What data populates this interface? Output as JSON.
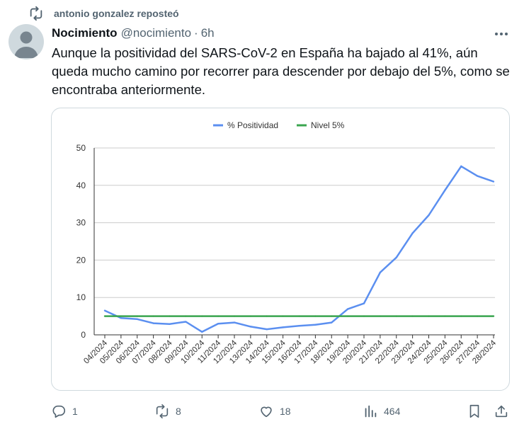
{
  "repost": {
    "text": "antonio gonzalez reposteó"
  },
  "tweet": {
    "author_name": "Nocimiento",
    "author_handle": "@nocimiento",
    "separator": "·",
    "time": "6h",
    "text": "Aunque la positividad del SARS-CoV-2 en España ha bajado al 41%, aún queda mucho camino por recorrer para descender por debajo del 5%, como se encontraba anteriormente."
  },
  "actions": {
    "reply_count": "1",
    "repost_count": "8",
    "like_count": "18",
    "views_count": "464"
  },
  "icons": {
    "repost_header": "repost-icon",
    "more": "more-icon",
    "reply": "reply-icon",
    "repost": "repost-icon",
    "like": "heart-icon",
    "views": "views-icon",
    "bookmark": "bookmark-icon",
    "share": "share-icon"
  },
  "colors": {
    "positividad": "#5b8ff0",
    "nivel": "#3aa54f",
    "grid": "#cccccc",
    "muted": "#536471"
  },
  "chart_data": {
    "type": "line",
    "title": "",
    "xlabel": "",
    "ylabel": "",
    "ylim": [
      0,
      50
    ],
    "yticks": [
      "0",
      "10",
      "20",
      "30",
      "40",
      "50"
    ],
    "legend_position": "top",
    "categories": [
      "04/2024",
      "05/2024",
      "06/2024",
      "07/2024",
      "08/2024",
      "09/2024",
      "10/2024",
      "11/2024",
      "12/2024",
      "13/2024",
      "14/2024",
      "15/2024",
      "16/2024",
      "17/2024",
      "18/2024",
      "19/2024",
      "20/2024",
      "21/2024",
      "22/2024",
      "23/2024",
      "24/2024",
      "25/2024",
      "26/2024",
      "27/2024",
      "28/2024"
    ],
    "series": [
      {
        "name": "% Positividad",
        "color": "#5b8ff0",
        "values": [
          6.5,
          4.5,
          4.2,
          3.1,
          2.9,
          3.5,
          0.8,
          3.0,
          3.3,
          2.2,
          1.5,
          2.0,
          2.4,
          2.7,
          3.3,
          6.9,
          8.4,
          16.7,
          20.7,
          27.2,
          32.0,
          38.7,
          45.1,
          42.5,
          41.0
        ]
      },
      {
        "name": "Nivel 5%",
        "color": "#3aa54f",
        "values": [
          5,
          5,
          5,
          5,
          5,
          5,
          5,
          5,
          5,
          5,
          5,
          5,
          5,
          5,
          5,
          5,
          5,
          5,
          5,
          5,
          5,
          5,
          5,
          5,
          5
        ]
      }
    ]
  }
}
